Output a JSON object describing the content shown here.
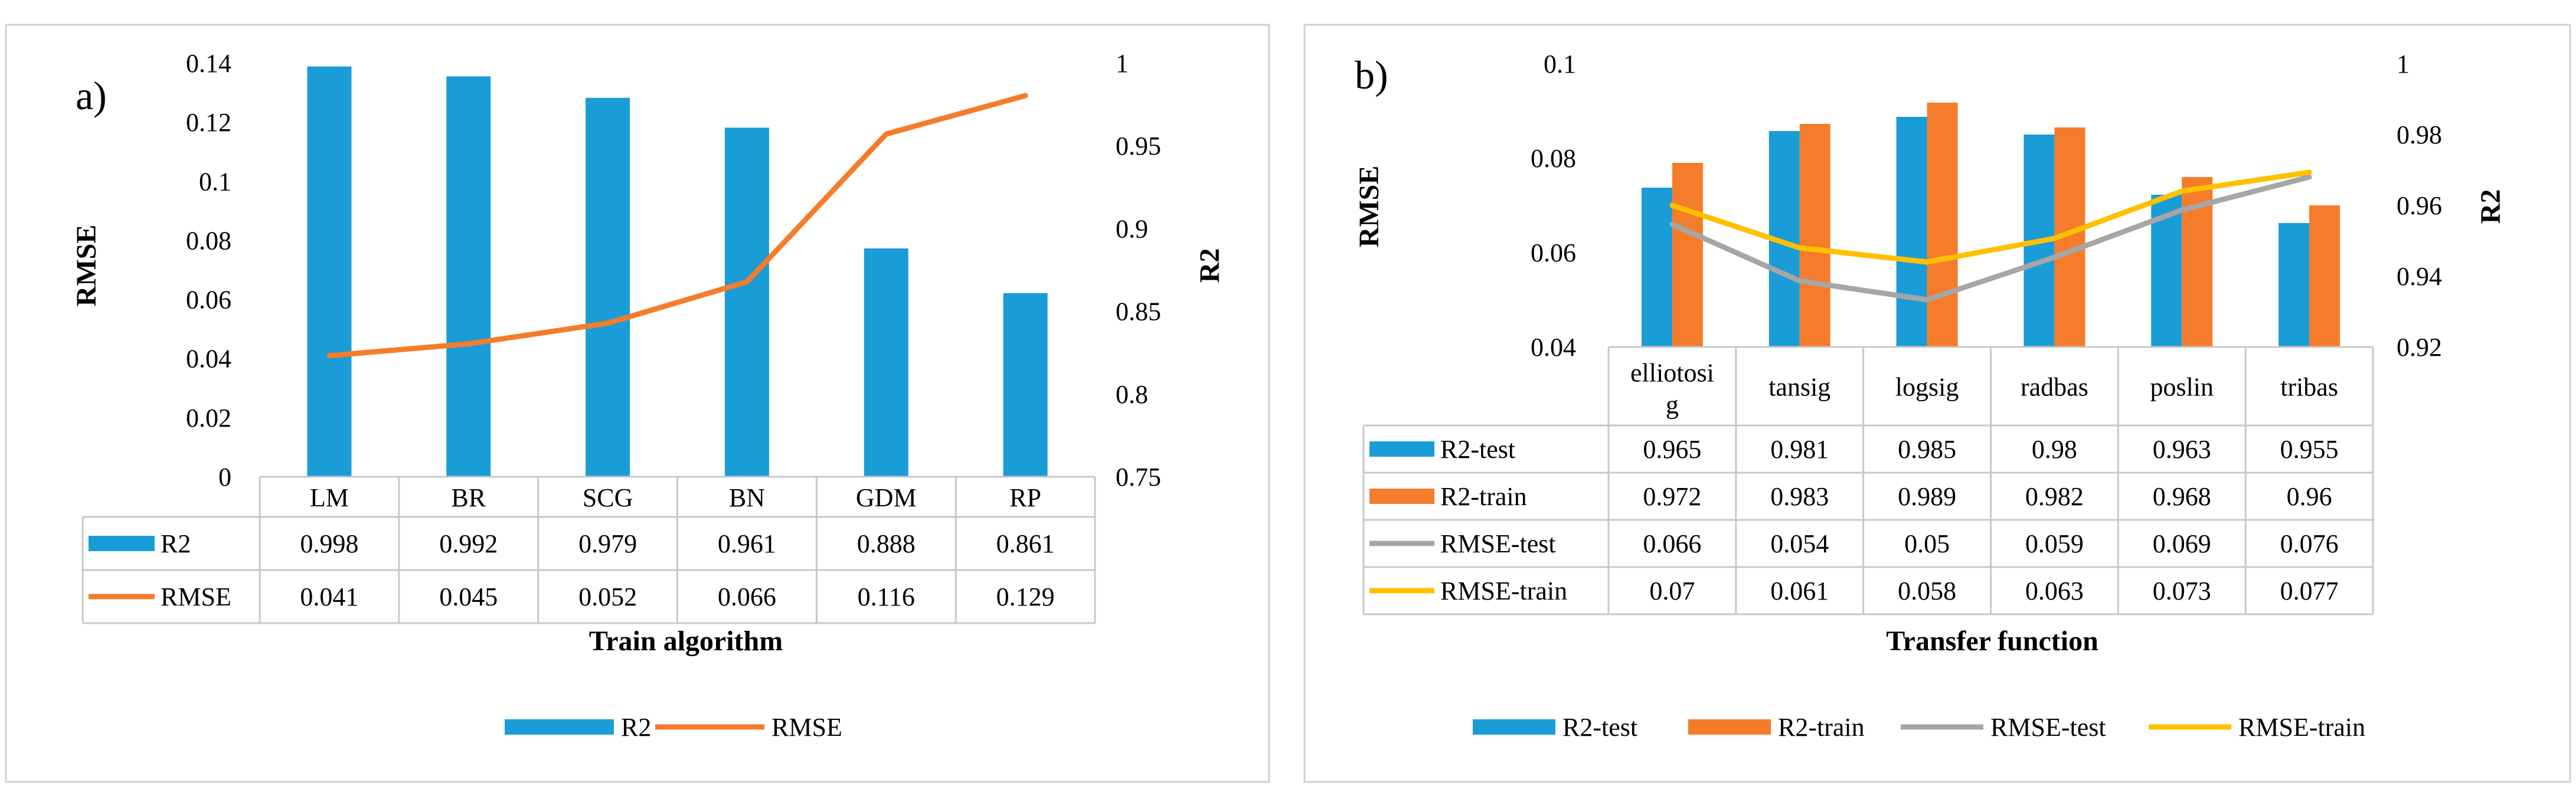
{
  "panel_a": {
    "label": "a)"
  },
  "panel_b": {
    "label": "b)"
  },
  "colors": {
    "blue": "#1a9cd7",
    "orange": "#f47c2a",
    "gray": "#a6a6a6",
    "yellow": "#ffc000"
  },
  "chart_data": [
    {
      "type": "bar",
      "categories": [
        "LM",
        "BR",
        "SCG",
        "BN",
        "GDM",
        "RP"
      ],
      "series": [
        {
          "name": "R2",
          "type": "bar",
          "axis": "right",
          "color": "#1a9cd7",
          "values": [
            0.998,
            0.992,
            0.979,
            0.961,
            0.888,
            0.861
          ],
          "table_labels": [
            "0.998",
            "0.992",
            "0.979",
            "0.961",
            "0.888",
            "0.861"
          ]
        },
        {
          "name": "RMSE",
          "type": "line",
          "axis": "left",
          "color": "#f47c2a",
          "values": [
            0.041,
            0.045,
            0.052,
            0.066,
            0.116,
            0.129
          ],
          "table_labels": [
            "0.041",
            "0.045",
            "0.052",
            "0.066",
            "0.116",
            "0.129"
          ]
        }
      ],
      "xlabel": "Train algorithm",
      "ylabel": "RMSE",
      "y2label": "R2",
      "ylim": [
        0,
        0.14
      ],
      "y2lim": [
        0.75,
        1
      ],
      "yticks": [
        "0",
        "0.02",
        "0.04",
        "0.06",
        "0.08",
        "0.1",
        "0.12",
        "0.14"
      ],
      "y2ticks": [
        "0.75",
        "0.8",
        "0.85",
        "0.9",
        "0.95",
        "1"
      ],
      "data_table": true,
      "legend_position": "bottom",
      "grid": false
    },
    {
      "type": "bar",
      "categories": [
        "elliotosig",
        "tansig",
        "logsig",
        "radbas",
        "poslin",
        "tribas"
      ],
      "category_lines": [
        [
          "elliotosi",
          "g"
        ],
        [
          "tansig"
        ],
        [
          "logsig"
        ],
        [
          "radbas"
        ],
        [
          "poslin"
        ],
        [
          "tribas"
        ]
      ],
      "series": [
        {
          "name": "R2-test",
          "type": "bar",
          "axis": "right",
          "color": "#1a9cd7",
          "values": [
            0.965,
            0.981,
            0.985,
            0.98,
            0.963,
            0.955
          ],
          "table_labels": [
            "0.965",
            "0.981",
            "0.985",
            "0.98",
            "0.963",
            "0.955"
          ]
        },
        {
          "name": "R2-train",
          "type": "bar",
          "axis": "right",
          "color": "#f47c2a",
          "values": [
            0.972,
            0.983,
            0.989,
            0.982,
            0.968,
            0.96
          ],
          "table_labels": [
            "0.972",
            "0.983",
            "0.989",
            "0.982",
            "0.968",
            "0.96"
          ]
        },
        {
          "name": "RMSE-test",
          "type": "line",
          "axis": "left",
          "color": "#a6a6a6",
          "values": [
            0.066,
            0.054,
            0.05,
            0.059,
            0.069,
            0.076
          ],
          "table_labels": [
            "0.066",
            "0.054",
            "0.05",
            "0.059",
            "0.069",
            "0.076"
          ]
        },
        {
          "name": "RMSE-train",
          "type": "line",
          "axis": "left",
          "color": "#ffc000",
          "values": [
            0.07,
            0.061,
            0.058,
            0.063,
            0.073,
            0.077
          ],
          "table_labels": [
            "0.07",
            "0.061",
            "0.058",
            "0.063",
            "0.073",
            "0.077"
          ]
        }
      ],
      "xlabel": "Transfer function",
      "ylabel": "RMSE",
      "y2label": "R2",
      "ylim": [
        0.04,
        0.1
      ],
      "y2lim": [
        0.92,
        1
      ],
      "yticks": [
        "0.04",
        "0.06",
        "0.08",
        "0.1"
      ],
      "y2ticks": [
        "0.92",
        "0.94",
        "0.96",
        "0.98",
        "1"
      ],
      "data_table": true,
      "legend_position": "bottom",
      "grid": false
    }
  ]
}
